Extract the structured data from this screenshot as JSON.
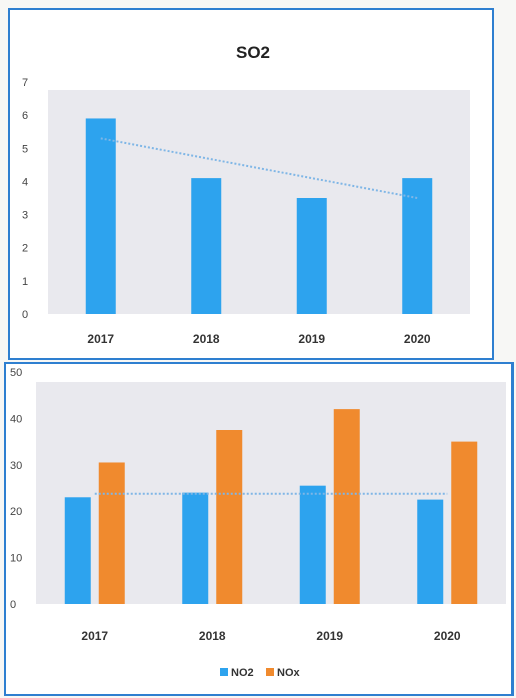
{
  "chart_data": [
    {
      "type": "bar",
      "title": "SO2",
      "categories": [
        "2017",
        "2018",
        "2019",
        "2020"
      ],
      "values": [
        5.9,
        4.1,
        3.5,
        4.1
      ],
      "yticks": [
        "0",
        "1",
        "2",
        "3",
        "4",
        "5",
        "6",
        "7"
      ],
      "ylim": [
        0,
        7
      ],
      "trendline": true,
      "grid": false,
      "colors": {
        "bar": "#2da3ee",
        "trend": "#7fb6e6",
        "plot_bg": "#e9e9ee"
      }
    },
    {
      "type": "bar",
      "title": "",
      "categories": [
        "2017",
        "2018",
        "2019",
        "2020"
      ],
      "series": [
        {
          "name": "NO2",
          "values": [
            23,
            24,
            25.5,
            22.5
          ],
          "color": "#2da3ee"
        },
        {
          "name": "NOx",
          "values": [
            30.5,
            37.5,
            42,
            35
          ],
          "color": "#f08a2e"
        }
      ],
      "yticks": [
        "0",
        "10",
        "20",
        "30",
        "40",
        "50"
      ],
      "ylim": [
        0,
        50
      ],
      "trendline": true,
      "grid": false,
      "legend": "bottom",
      "colors": {
        "trend": "#7fb6e6",
        "plot_bg": "#e9e9ee"
      }
    }
  ]
}
